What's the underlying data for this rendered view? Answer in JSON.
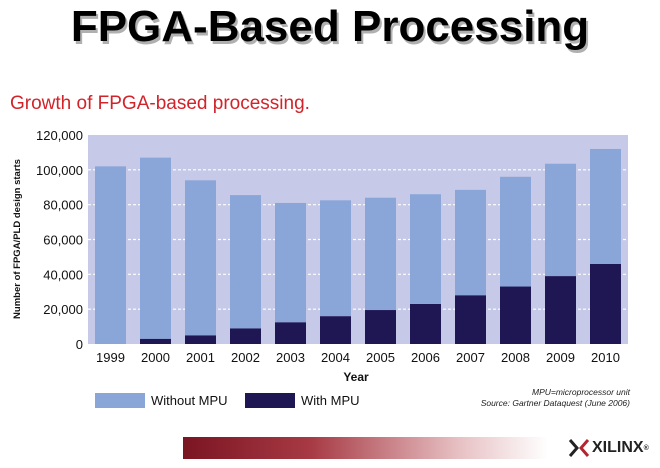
{
  "slide": {
    "title": "FPGA-Based Processing",
    "subtitle": "Growth of FPGA-based processing."
  },
  "chart_data": {
    "type": "bar",
    "stacked": true,
    "title": "Growth of FPGA-based processing.",
    "xlabel": "Year",
    "ylabel": "Number of FPGA/PLD design starts",
    "categories": [
      "1999",
      "2000",
      "2001",
      "2002",
      "2003",
      "2004",
      "2005",
      "2006",
      "2007",
      "2008",
      "2009",
      "2010"
    ],
    "series": [
      {
        "name": "With MPU",
        "color": "#1f1654",
        "values": [
          0,
          3000,
          5000,
          9000,
          12500,
          16000,
          19500,
          23000,
          28000,
          33000,
          39000,
          46000
        ]
      },
      {
        "name": "Without MPU",
        "color": "#8aa6d8",
        "values": [
          102000,
          104000,
          89000,
          76500,
          68500,
          66500,
          64500,
          63000,
          60500,
          63000,
          64500,
          66000
        ]
      }
    ],
    "ylim": [
      0,
      120000
    ],
    "yticks": [
      0,
      20000,
      40000,
      60000,
      80000,
      100000,
      120000
    ],
    "ytick_labels": [
      "0",
      "20,000",
      "40,000",
      "60,000",
      "80,000",
      "100,000",
      "120,000"
    ],
    "grid": true,
    "plot_background": "#c6cae8",
    "legend_position": "bottom"
  },
  "notes": {
    "line1": "MPU=microprocessor unit",
    "line2": "Source: Gartner Dataquest (June 2006)"
  },
  "logo": {
    "text": "XILINX",
    "suffix": "®"
  }
}
